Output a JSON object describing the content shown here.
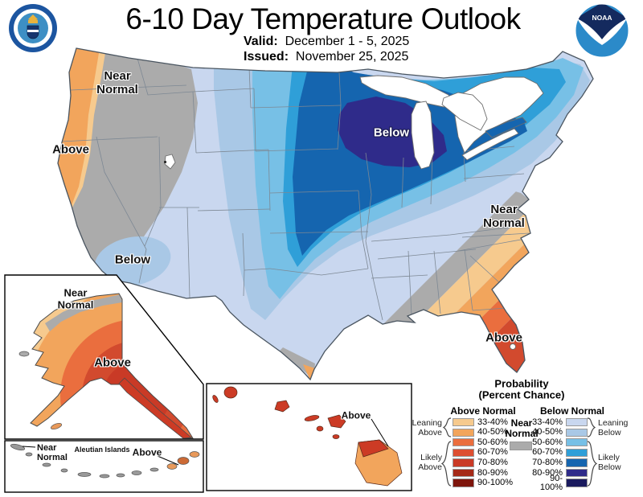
{
  "header": {
    "title": "6-10 Day Temperature Outlook",
    "valid_label": "Valid:",
    "valid_value": "December 1 - 5, 2025",
    "issued_label": "Issued:",
    "issued_value": "November 25, 2025"
  },
  "logos": {
    "noaa_text": "NOAA"
  },
  "map_labels": {
    "nw_near_line1": "Near",
    "nw_near_line2": "Normal",
    "west_above": "Above",
    "sw_below": "Below",
    "midwest_below": "Below",
    "se_near_line1": "Near",
    "se_near_line2": "Normal",
    "fl_above": "Above"
  },
  "alaska_inset": {
    "near_line1": "Near",
    "near_line2": "Normal",
    "above": "Above"
  },
  "aleutian_inset": {
    "title": "Aleutian Islands",
    "near_line1": "Near",
    "near_line2": "Normal",
    "above": "Above"
  },
  "hawaii_inset": {
    "above": "Above"
  },
  "legend": {
    "title_line1": "Probability",
    "title_line2": "(Percent Chance)",
    "above_header": "Above Normal",
    "below_header": "Below Normal",
    "near_line1": "Near",
    "near_line2": "Normal",
    "near_color": "#ABABAB",
    "above_rows": [
      {
        "label": "33-40%",
        "color": "#F6CA8E"
      },
      {
        "label": "40-50%",
        "color": "#F2A55C"
      },
      {
        "label": "50-60%",
        "color": "#EA6E3E"
      },
      {
        "label": "60-70%",
        "color": "#DD4F32"
      },
      {
        "label": "70-80%",
        "color": "#C93A26"
      },
      {
        "label": "80-90%",
        "color": "#A52A18"
      },
      {
        "label": "90-100%",
        "color": "#7E150C"
      }
    ],
    "below_rows": [
      {
        "label": "33-40%",
        "color": "#C9D7EF"
      },
      {
        "label": "40-50%",
        "color": "#A9C8E6"
      },
      {
        "label": "50-60%",
        "color": "#77C0E6"
      },
      {
        "label": "60-70%",
        "color": "#2F9FD8"
      },
      {
        "label": "70-80%",
        "color": "#1565AF"
      },
      {
        "label": "80-90%",
        "color": "#2F2B8A"
      },
      {
        "label": "90-100%",
        "color": "#1A1A5E"
      }
    ],
    "leaning_above_line1": "Leaning",
    "leaning_above_line2": "Above",
    "likely_above_line1": "Likely",
    "likely_above_line2": "Above",
    "leaning_below_line1": "Leaning",
    "leaning_below_line2": "Below",
    "likely_below_line1": "Likely",
    "likely_below_line2": "Below"
  }
}
